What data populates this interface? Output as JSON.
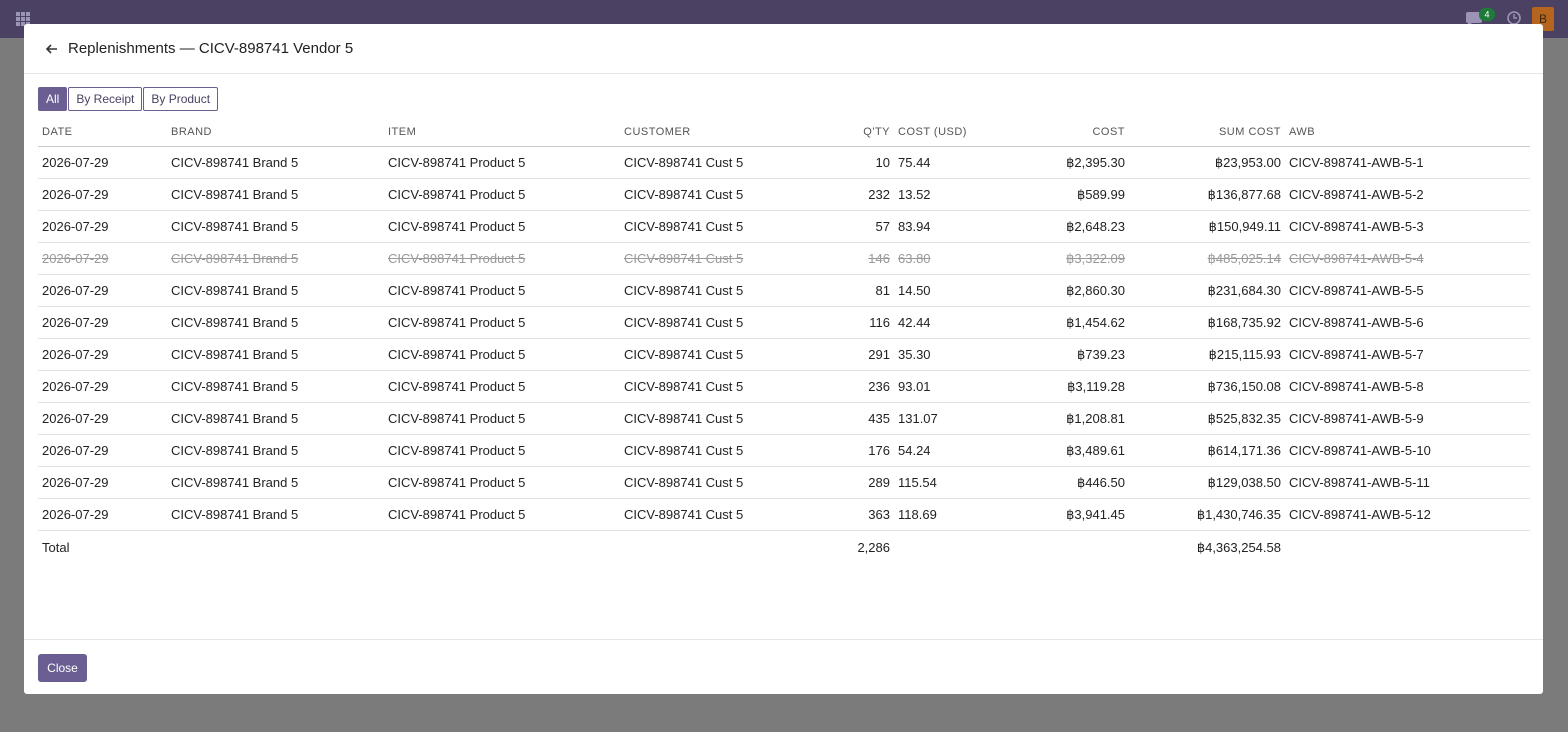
{
  "topbar": {
    "chat_badge": "4",
    "avatar": "B"
  },
  "dialog": {
    "title": "Replenishments — CICV-898741 Vendor 5",
    "tabs": [
      "All",
      "By Receipt",
      "By Product"
    ],
    "active_tab": 0,
    "table": {
      "columns": [
        "DATE",
        "BRAND",
        "ITEM",
        "CUSTOMER",
        "Q'TY",
        "COST (USD)",
        "COST",
        "SUM COST",
        "AWB"
      ],
      "right_aligned_columns": [
        4,
        6,
        7
      ],
      "cancelled_rows": [
        3
      ],
      "rows": [
        [
          "2026-07-29",
          "CICV-898741 Brand 5",
          "CICV-898741 Product 5",
          "CICV-898741 Cust 5",
          "10",
          "75.44",
          "฿2,395.30",
          "฿23,953.00",
          "CICV-898741-AWB-5-1"
        ],
        [
          "2026-07-29",
          "CICV-898741 Brand 5",
          "CICV-898741 Product 5",
          "CICV-898741 Cust 5",
          "232",
          "13.52",
          "฿589.99",
          "฿136,877.68",
          "CICV-898741-AWB-5-2"
        ],
        [
          "2026-07-29",
          "CICV-898741 Brand 5",
          "CICV-898741 Product 5",
          "CICV-898741 Cust 5",
          "57",
          "83.94",
          "฿2,648.23",
          "฿150,949.11",
          "CICV-898741-AWB-5-3"
        ],
        [
          "2026-07-29",
          "CICV-898741 Brand 5",
          "CICV-898741 Product 5",
          "CICV-898741 Cust 5",
          "146",
          "63.80",
          "฿3,322.09",
          "฿485,025.14",
          "CICV-898741-AWB-5-4"
        ],
        [
          "2026-07-29",
          "CICV-898741 Brand 5",
          "CICV-898741 Product 5",
          "CICV-898741 Cust 5",
          "81",
          "14.50",
          "฿2,860.30",
          "฿231,684.30",
          "CICV-898741-AWB-5-5"
        ],
        [
          "2026-07-29",
          "CICV-898741 Brand 5",
          "CICV-898741 Product 5",
          "CICV-898741 Cust 5",
          "116",
          "42.44",
          "฿1,454.62",
          "฿168,735.92",
          "CICV-898741-AWB-5-6"
        ],
        [
          "2026-07-29",
          "CICV-898741 Brand 5",
          "CICV-898741 Product 5",
          "CICV-898741 Cust 5",
          "291",
          "35.30",
          "฿739.23",
          "฿215,115.93",
          "CICV-898741-AWB-5-7"
        ],
        [
          "2026-07-29",
          "CICV-898741 Brand 5",
          "CICV-898741 Product 5",
          "CICV-898741 Cust 5",
          "236",
          "93.01",
          "฿3,119.28",
          "฿736,150.08",
          "CICV-898741-AWB-5-8"
        ],
        [
          "2026-07-29",
          "CICV-898741 Brand 5",
          "CICV-898741 Product 5",
          "CICV-898741 Cust 5",
          "435",
          "131.07",
          "฿1,208.81",
          "฿525,832.35",
          "CICV-898741-AWB-5-9"
        ],
        [
          "2026-07-29",
          "CICV-898741 Brand 5",
          "CICV-898741 Product 5",
          "CICV-898741 Cust 5",
          "176",
          "54.24",
          "฿3,489.61",
          "฿614,171.36",
          "CICV-898741-AWB-5-10"
        ],
        [
          "2026-07-29",
          "CICV-898741 Brand 5",
          "CICV-898741 Product 5",
          "CICV-898741 Cust 5",
          "289",
          "115.54",
          "฿446.50",
          "฿129,038.50",
          "CICV-898741-AWB-5-11"
        ],
        [
          "2026-07-29",
          "CICV-898741 Brand 5",
          "CICV-898741 Product 5",
          "CICV-898741 Cust 5",
          "363",
          "118.69",
          "฿3,941.45",
          "฿1,430,746.35",
          "CICV-898741-AWB-5-12"
        ]
      ],
      "total": {
        "label": "Total",
        "qty": "2,286",
        "sum_cost": "฿4,363,254.58"
      }
    },
    "close": "Close"
  }
}
